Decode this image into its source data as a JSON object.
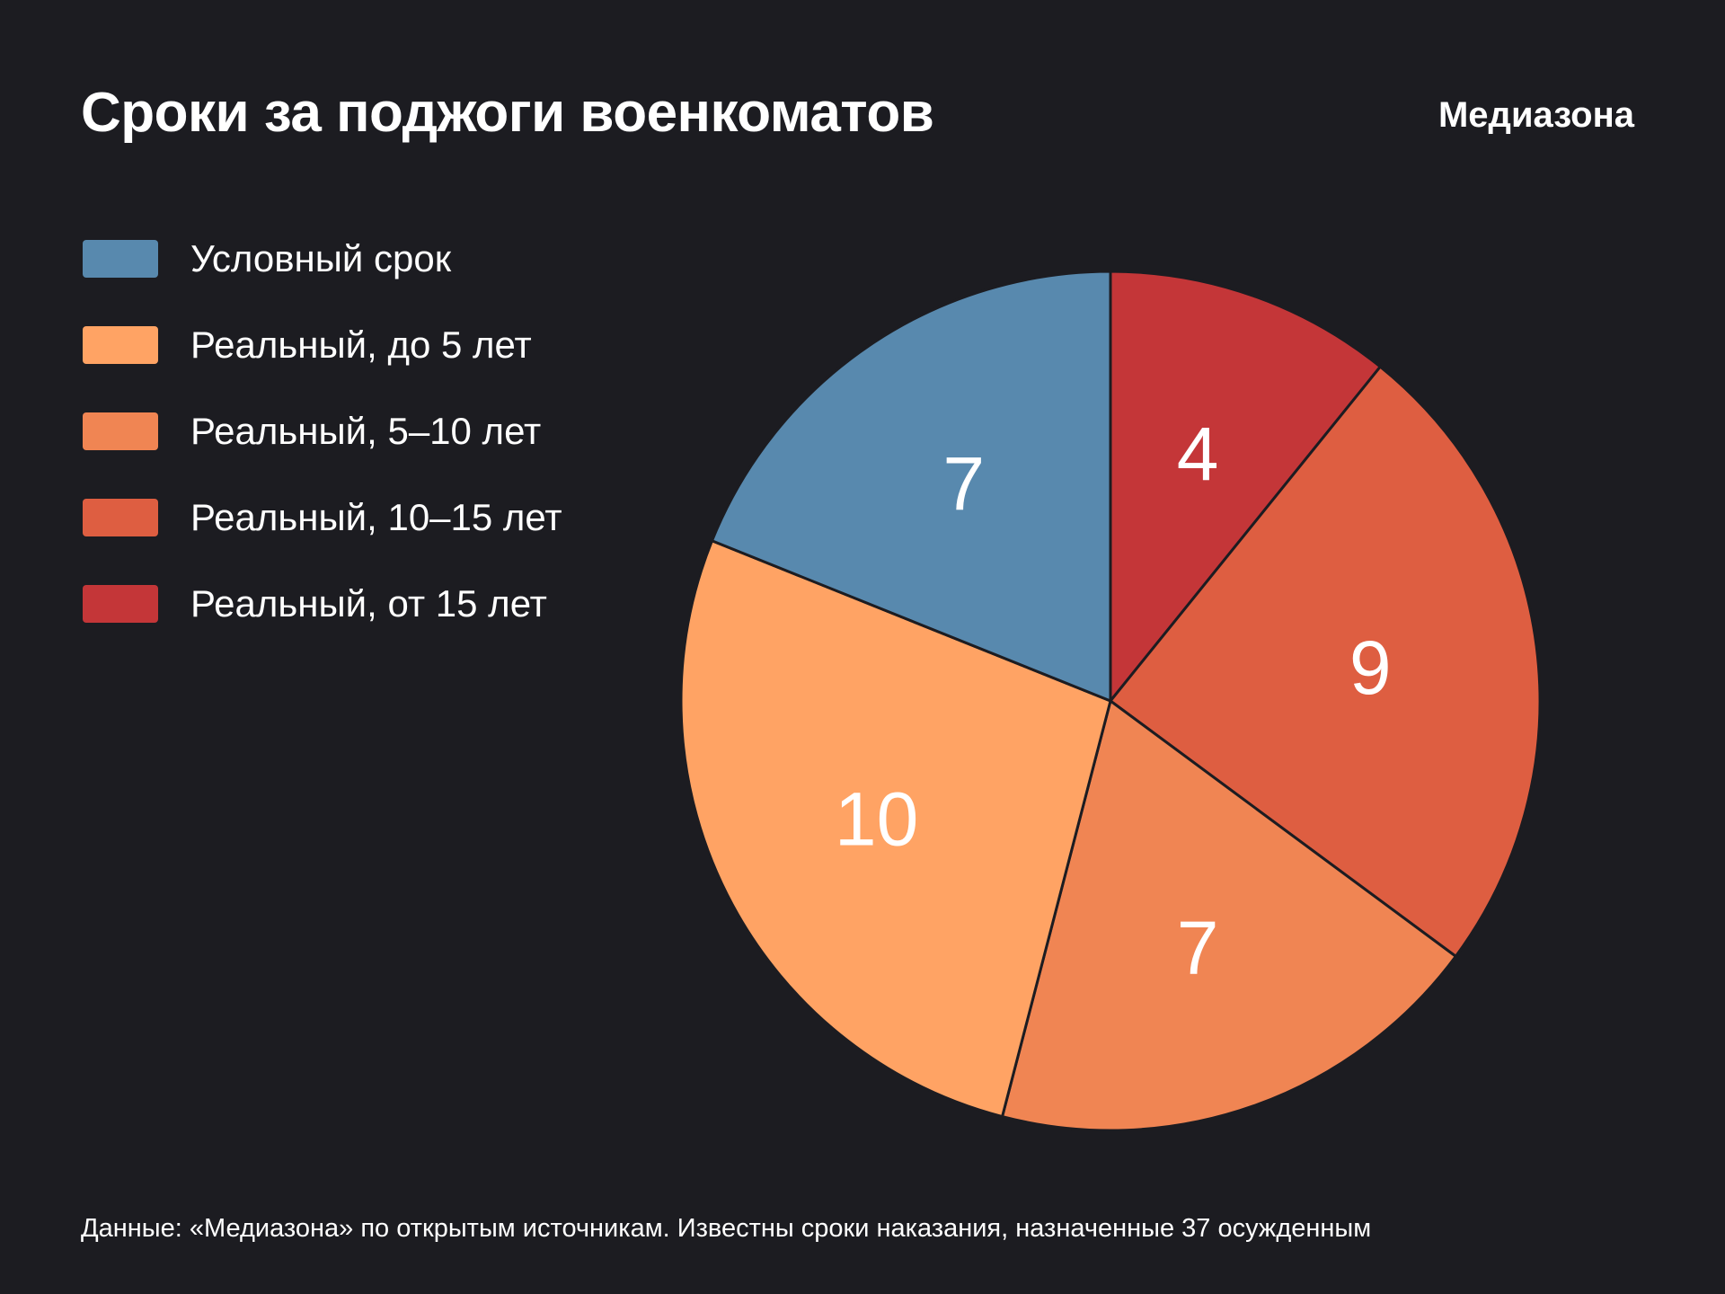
{
  "title": "Сроки за поджоги военкоматов",
  "brand": "Медиазона",
  "footnote": "Данные: «Медиазона» по открытым источникам. Известны сроки наказания, назначенные 37 осужденным",
  "chart_data": {
    "type": "pie",
    "title": "Сроки за поджоги военкоматов",
    "legend_placement": "left",
    "categories": [
      "Условный срок",
      "Реальный, до 5 лет",
      "Реальный, 5–10 лет",
      "Реальный, 10–15 лет",
      "Реальный, от 15 лет"
    ],
    "values": [
      7,
      10,
      7,
      9,
      4
    ],
    "value_labels": [
      "7",
      "10",
      "7",
      "9",
      "4"
    ],
    "colors": [
      "#5889ae",
      "#ffa364",
      "#f08553",
      "#de5e41",
      "#c43638"
    ],
    "slice_order_clockwise_from_top": [
      4,
      3,
      2,
      1,
      0
    ]
  }
}
